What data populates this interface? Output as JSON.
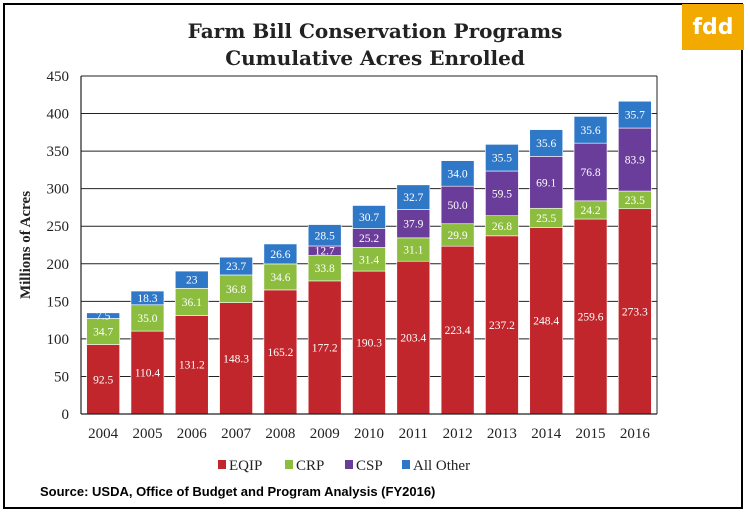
{
  "logo_text": "fdd",
  "source_text": "Source:  USDA, Office of Budget and Program Analysis (FY2016)",
  "chart_data": {
    "type": "bar",
    "stacked": true,
    "title": "Farm Bill Conservation Programs",
    "subtitle": "Cumulative Acres Enrolled",
    "xlabel": "",
    "ylabel": "Millions of Acres",
    "ylim": [
      0,
      450
    ],
    "yticks": [
      0,
      50,
      100,
      150,
      200,
      250,
      300,
      350,
      400,
      450
    ],
    "grid": true,
    "legend_position": "bottom",
    "categories": [
      "2004",
      "2005",
      "2006",
      "2007",
      "2008",
      "2009",
      "2010",
      "2011",
      "2012",
      "2013",
      "2014",
      "2015",
      "2016"
    ],
    "series": [
      {
        "name": "EQIP",
        "color": "#c0262b",
        "values": [
          92.5,
          110.4,
          131.2,
          148.3,
          165.2,
          177.2,
          190.3,
          203.4,
          223.4,
          237.2,
          248.4,
          259.6,
          273.3
        ]
      },
      {
        "name": "CRP",
        "color": "#8cbd3f",
        "values": [
          34.7,
          35.0,
          36.1,
          36.8,
          34.6,
          33.8,
          31.4,
          31.1,
          29.9,
          26.8,
          25.5,
          24.2,
          23.5
        ]
      },
      {
        "name": "CSP",
        "color": "#6a3d9a",
        "values": [
          0,
          0,
          0,
          0,
          0,
          12.7,
          25.2,
          37.9,
          50.0,
          59.5,
          69.1,
          76.8,
          83.9
        ]
      },
      {
        "name": "All Other",
        "color": "#2f78c8",
        "values": [
          7.5,
          18.3,
          23,
          23.7,
          26.6,
          28.5,
          30.7,
          32.7,
          34.0,
          35.5,
          35.6,
          35.6,
          35.7
        ]
      }
    ],
    "data_labels": [
      [
        "92.5",
        "110.4",
        "131.2",
        "148.3",
        "165.2",
        "177.2",
        "190.3",
        "203.4",
        "223.4",
        "237.2",
        "248.4",
        "259.6",
        "273.3"
      ],
      [
        "34.7",
        "35.0",
        "36.1",
        "36.8",
        "34.6",
        "33.8",
        "31.4",
        "31.1",
        "29.9",
        "26.8",
        "25.5",
        "24.2",
        "23.5"
      ],
      [
        "",
        "",
        "",
        "",
        "",
        "12.7",
        "25.2",
        "37.9",
        "50.0",
        "59.5",
        "69.1",
        "76.8",
        "83.9"
      ],
      [
        "7.5",
        "18.3",
        "23",
        "23.7",
        "26.6",
        "28.5",
        "30.7",
        "32.7",
        "34.0",
        "35.5",
        "35.6",
        "35.6",
        "35.7"
      ]
    ]
  }
}
